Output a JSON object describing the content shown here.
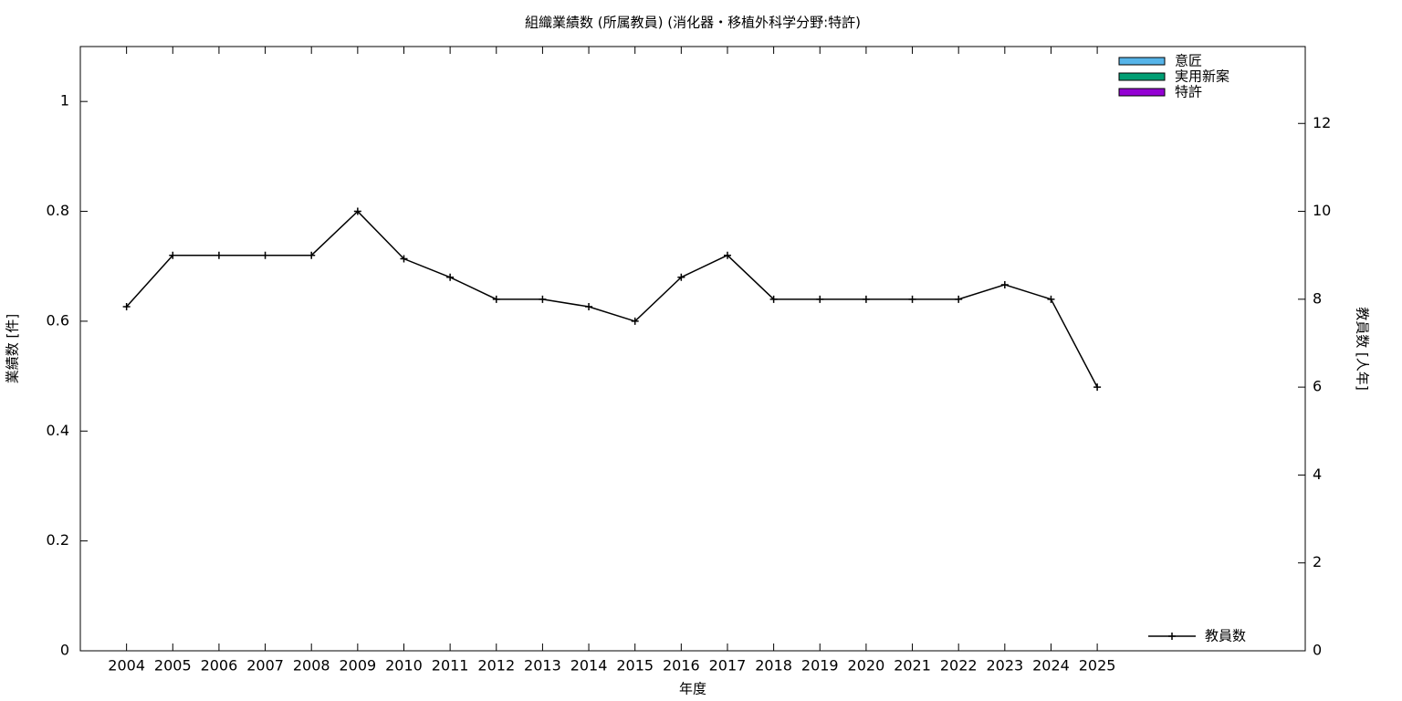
{
  "chart_data": {
    "type": "bar-line",
    "title": "組織業績数 (所属教員) (消化器・移植外科学分野:特許)",
    "x_label": "年度",
    "y_label": "業績数 [件]",
    "y2_label": "教員数 [人年]",
    "x": [
      2004,
      2005,
      2006,
      2007,
      2008,
      2009,
      2010,
      2011,
      2012,
      2013,
      2014,
      2015,
      2016,
      2017,
      2018,
      2019,
      2020,
      2021,
      2022,
      2023,
      2024,
      2025
    ],
    "xlim": [
      2003,
      2029.5
    ],
    "xticks": [
      2004,
      2005,
      2006,
      2007,
      2008,
      2009,
      2010,
      2011,
      2012,
      2013,
      2014,
      2015,
      2016,
      2017,
      2018,
      2019,
      2020,
      2021,
      2022,
      2023,
      2024,
      2025
    ],
    "ylim": [
      0,
      1.1
    ],
    "yticks": [
      0,
      0.2,
      0.4,
      0.6,
      0.8,
      1
    ],
    "y2lim": [
      0,
      13.75
    ],
    "y2ticks": [
      0,
      2,
      4,
      6,
      8,
      10,
      12
    ],
    "series": [
      {
        "name": "意匠",
        "color": "#56b4e9",
        "values": [
          0,
          0,
          0,
          0,
          0,
          0,
          0,
          0,
          0,
          0,
          0,
          0,
          0,
          0,
          0,
          0,
          0,
          0,
          0,
          0,
          0,
          0
        ]
      },
      {
        "name": "実用新案",
        "color": "#009e73",
        "values": [
          0,
          0,
          0,
          0,
          0,
          0,
          0,
          0,
          0,
          0,
          0,
          0,
          0,
          0,
          0,
          0,
          0,
          0,
          0,
          0,
          0,
          0
        ]
      },
      {
        "name": "特許",
        "color": "#9400d3",
        "values": [
          0,
          0,
          0,
          0,
          0,
          0,
          0,
          0,
          0,
          0,
          0,
          0,
          0,
          0,
          0,
          0,
          0,
          0,
          0,
          0,
          0,
          0
        ]
      },
      {
        "name": "教員数",
        "color": "#000000",
        "axis": "y2",
        "values": [
          7.83,
          9,
          9,
          9,
          9,
          10,
          8.92,
          8.5,
          8,
          8,
          7.83,
          7.5,
          8.5,
          9,
          8,
          8,
          8,
          8,
          8,
          8.33,
          8,
          6
        ]
      }
    ]
  }
}
